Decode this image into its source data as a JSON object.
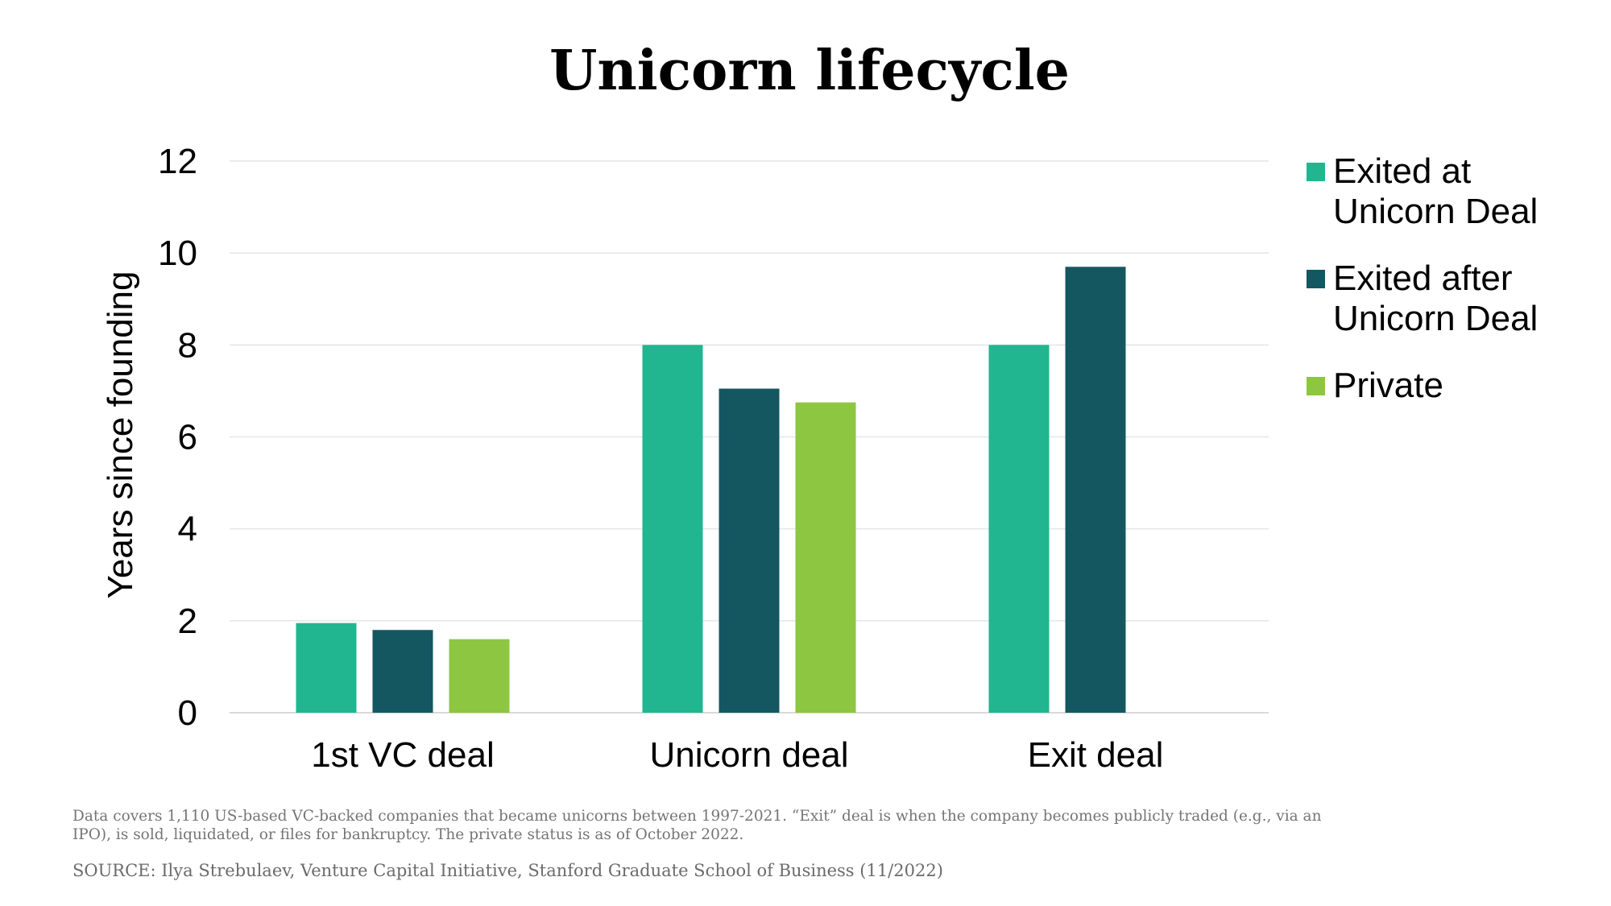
{
  "chart_data": {
    "type": "bar",
    "title": "Unicorn lifecycle",
    "ylabel": "Years since founding",
    "xlabel": "",
    "ylim": [
      0,
      12
    ],
    "yticks": [
      0,
      2,
      4,
      6,
      8,
      10,
      12
    ],
    "grid": true,
    "legend_position": "right",
    "categories": [
      "1st VC deal",
      "Unicorn deal",
      "Exit deal"
    ],
    "series": [
      {
        "name": "Exited at Unicorn Deal",
        "color": "#21b68f",
        "values": [
          1.95,
          8.0,
          8.0
        ]
      },
      {
        "name": "Exited after Unicorn Deal",
        "color": "#145761",
        "values": [
          1.8,
          7.05,
          9.7
        ]
      },
      {
        "name": "Private",
        "color": "#8dc641",
        "values": [
          1.6,
          6.75,
          null
        ]
      }
    ]
  },
  "footnote": "Data covers 1,110 US-based VC-backed companies that became unicorns between 1997-2021. “Exit” deal is when the company becomes publicly traded (e.g., via an IPO), is sold, liquidated, or files for bankruptcy. The private status is as of October 2022.",
  "source": "SOURCE: Ilya Strebulaev, Venture Capital Initiative, Stanford Graduate School of Business (11/2022)"
}
